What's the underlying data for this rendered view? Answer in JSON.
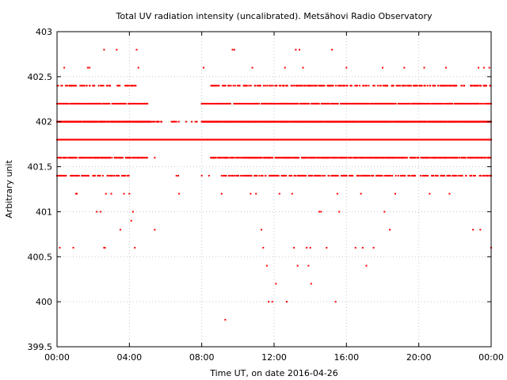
{
  "chart_data": {
    "type": "scatter",
    "title": "Total UV radiation intensity (uncalibrated). Metsähovi Radio Observatory",
    "xlabel": "Time UT, on date 2016-04-26",
    "ylabel": "Arbitrary unit",
    "xlim_hours": [
      0,
      24
    ],
    "ylim": [
      399.5,
      403
    ],
    "xticks": [
      {
        "hour": 0,
        "label": "00:00"
      },
      {
        "hour": 4,
        "label": "04:00"
      },
      {
        "hour": 8,
        "label": "08:00"
      },
      {
        "hour": 12,
        "label": "12:00"
      },
      {
        "hour": 16,
        "label": "16:00"
      },
      {
        "hour": 20,
        "label": "20:00"
      },
      {
        "hour": 24,
        "label": "00:00"
      }
    ],
    "yticks": [
      {
        "value": 399.5,
        "label": "399.5"
      },
      {
        "value": 400,
        "label": "400"
      },
      {
        "value": 400.5,
        "label": "400.5"
      },
      {
        "value": 401,
        "label": "401"
      },
      {
        "value": 401.5,
        "label": "401.5"
      },
      {
        "value": 402,
        "label": "402"
      },
      {
        "value": 402.5,
        "label": "402.5"
      },
      {
        "value": 403,
        "label": "403"
      }
    ],
    "grid": true,
    "marker_color": "#ff0000",
    "series": [
      {
        "bands": [
          {
            "value": 401.8,
            "ranges": [
              [
                0,
                24
              ]
            ],
            "density": 1.0
          },
          {
            "value": 402.0,
            "ranges": [
              [
                0,
                5.2
              ],
              [
                8.0,
                24
              ]
            ],
            "density": 0.85
          },
          {
            "value": 402.0,
            "ranges": [
              [
                5.2,
                8.0
              ]
            ],
            "density": 0.12
          },
          {
            "value": 401.6,
            "ranges": [
              [
                0,
                5.0
              ],
              [
                8.5,
                24
              ]
            ],
            "density": 0.45
          },
          {
            "value": 402.2,
            "ranges": [
              [
                0,
                5.0
              ],
              [
                8.0,
                24
              ]
            ],
            "density": 0.45
          },
          {
            "value": 402.4,
            "ranges": [
              [
                0,
                4.5
              ],
              [
                8.5,
                24
              ]
            ],
            "density": 0.25
          },
          {
            "value": 401.4,
            "ranges": [
              [
                0,
                4.0
              ],
              [
                9.0,
                24
              ]
            ],
            "density": 0.25
          }
        ],
        "points": [
          [
            0.15,
            400.6
          ],
          [
            0.4,
            402.6
          ],
          [
            0.9,
            400.6
          ],
          [
            1.1,
            401.2
          ],
          [
            1.05,
            401.2
          ],
          [
            1.7,
            402.6
          ],
          [
            1.8,
            402.6
          ],
          [
            2.2,
            401.0
          ],
          [
            2.4,
            401.0
          ],
          [
            2.6,
            402.8
          ],
          [
            2.6,
            400.6
          ],
          [
            2.65,
            400.6
          ],
          [
            2.7,
            401.2
          ],
          [
            3.0,
            401.2
          ],
          [
            3.3,
            402.8
          ],
          [
            3.5,
            400.8
          ],
          [
            3.7,
            401.2
          ],
          [
            4.0,
            401.2
          ],
          [
            4.1,
            400.9
          ],
          [
            4.2,
            401.0
          ],
          [
            4.3,
            400.6
          ],
          [
            4.4,
            402.8
          ],
          [
            4.5,
            402.6
          ],
          [
            5.4,
            400.8
          ],
          [
            5.4,
            401.6
          ],
          [
            6.6,
            401.4
          ],
          [
            6.7,
            401.4
          ],
          [
            6.75,
            401.2
          ],
          [
            8.0,
            401.4
          ],
          [
            8.1,
            402.6
          ],
          [
            8.4,
            401.4
          ],
          [
            9.1,
            401.2
          ],
          [
            9.3,
            399.8
          ],
          [
            9.7,
            402.8
          ],
          [
            9.8,
            402.8
          ],
          [
            10.2,
            401.4
          ],
          [
            10.7,
            401.2
          ],
          [
            10.8,
            402.6
          ],
          [
            11.0,
            401.2
          ],
          [
            11.3,
            400.8
          ],
          [
            11.4,
            400.6
          ],
          [
            11.6,
            400.4
          ],
          [
            11.7,
            400.0
          ],
          [
            11.9,
            400.0
          ],
          [
            12.0,
            401.4
          ],
          [
            12.1,
            400.2
          ],
          [
            12.3,
            401.2
          ],
          [
            12.6,
            402.6
          ],
          [
            12.7,
            400.0
          ],
          [
            13.0,
            401.2
          ],
          [
            13.1,
            400.6
          ],
          [
            13.3,
            400.4
          ],
          [
            13.2,
            402.8
          ],
          [
            13.4,
            402.8
          ],
          [
            13.6,
            402.6
          ],
          [
            13.8,
            400.6
          ],
          [
            13.9,
            400.4
          ],
          [
            14.0,
            400.6
          ],
          [
            14.05,
            400.2
          ],
          [
            14.3,
            401.4
          ],
          [
            14.5,
            401.0
          ],
          [
            14.6,
            401.0
          ],
          [
            14.9,
            400.6
          ],
          [
            15.0,
            401.4
          ],
          [
            15.2,
            402.8
          ],
          [
            15.4,
            400.0
          ],
          [
            15.5,
            401.2
          ],
          [
            15.6,
            401.0
          ],
          [
            15.8,
            401.4
          ],
          [
            16.0,
            402.6
          ],
          [
            16.3,
            401.4
          ],
          [
            16.5,
            400.6
          ],
          [
            16.8,
            401.2
          ],
          [
            16.9,
            400.6
          ],
          [
            17.1,
            400.4
          ],
          [
            17.5,
            400.6
          ],
          [
            17.8,
            401.4
          ],
          [
            18.0,
            402.6
          ],
          [
            18.1,
            401.0
          ],
          [
            18.4,
            400.8
          ],
          [
            18.7,
            401.2
          ],
          [
            19.2,
            402.6
          ],
          [
            19.8,
            401.4
          ],
          [
            20.3,
            402.6
          ],
          [
            20.6,
            401.2
          ],
          [
            21.5,
            402.6
          ],
          [
            21.7,
            401.2
          ],
          [
            22.6,
            401.4
          ],
          [
            23.0,
            400.8
          ],
          [
            23.3,
            402.6
          ],
          [
            23.4,
            400.8
          ],
          [
            23.6,
            402.6
          ],
          [
            23.9,
            402.6
          ],
          [
            24.0,
            400.6
          ]
        ]
      }
    ]
  }
}
